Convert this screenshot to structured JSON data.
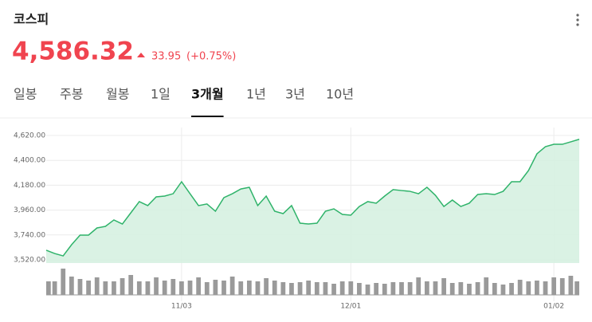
{
  "header": {
    "title": "코스피",
    "price": "4,586.32",
    "change": 33.95,
    "change_pct": "(+0.75%)"
  },
  "tabs": [
    "일봉",
    "주봉",
    "월봉",
    "1일",
    "3개월",
    "1년",
    "3년",
    "10년"
  ],
  "active_tab": 4,
  "chart_data": {
    "type": "line",
    "categories": [
      null,
      null,
      null,
      null,
      null,
      null,
      null,
      null,
      null,
      null,
      null,
      null,
      null,
      null,
      null,
      null,
      "11/03",
      null,
      null,
      null,
      null,
      null,
      null,
      null,
      null,
      null,
      null,
      null,
      null,
      null,
      null,
      null,
      null,
      null,
      null,
      null,
      "12/01",
      null,
      null,
      null,
      null,
      null,
      null,
      null,
      null,
      null,
      null,
      null,
      null,
      null,
      null,
      null,
      null,
      null,
      null,
      null,
      null,
      null,
      null,
      null,
      "01/02",
      null,
      null,
      null
    ],
    "series": [
      {
        "color": "#2fb36a",
        "values": [
          3605,
          3576,
          3555,
          3654,
          3739,
          3739,
          3802,
          3816,
          3873,
          3837,
          3936,
          4035,
          4000,
          4077,
          4084,
          4105,
          4211,
          4105,
          4000,
          4014,
          3950,
          4070,
          4105,
          4147,
          4162,
          4000,
          4084,
          3950,
          3929,
          4000,
          3844,
          3837,
          3844,
          3950,
          3971,
          3922,
          3915,
          3992,
          4035,
          4021,
          4084,
          4141,
          4133,
          4126,
          4105,
          4162,
          4091,
          3992,
          4049,
          3992,
          4021,
          4098,
          4105,
          4098,
          4126,
          4211,
          4211,
          4310,
          4458,
          4521,
          4542,
          4542,
          4564,
          4586.32
        ]
      }
    ],
    "volume": {
      "color": "#9a9a9a",
      "ylim": [
        0,
        40
      ],
      "values": [
        17,
        17,
        33,
        23,
        20,
        18,
        22,
        17,
        17,
        21,
        25,
        17,
        17,
        22,
        18,
        20,
        17,
        18,
        22,
        16,
        19,
        18,
        23,
        17,
        18,
        17,
        21,
        18,
        16,
        15,
        16,
        18,
        16,
        16,
        14,
        17,
        17,
        15,
        13,
        15,
        14,
        16,
        16,
        16,
        22,
        17,
        17,
        21,
        15,
        16,
        14,
        16,
        22,
        15,
        13,
        15,
        19,
        17,
        18,
        17,
        22,
        21,
        24,
        17
      ]
    },
    "ylim": [
      3520,
      4620
    ],
    "yticks": [
      {
        "value": 3520,
        "label": "3,520.00"
      },
      {
        "value": 3740,
        "label": "3,740.00"
      },
      {
        "value": 3960,
        "label": "3,960.00"
      },
      {
        "value": 4180,
        "label": "4,180.00"
      },
      {
        "value": 4400,
        "label": "4,400.00"
      },
      {
        "value": 4620,
        "label": "4,620.00"
      }
    ],
    "grid": true
  }
}
